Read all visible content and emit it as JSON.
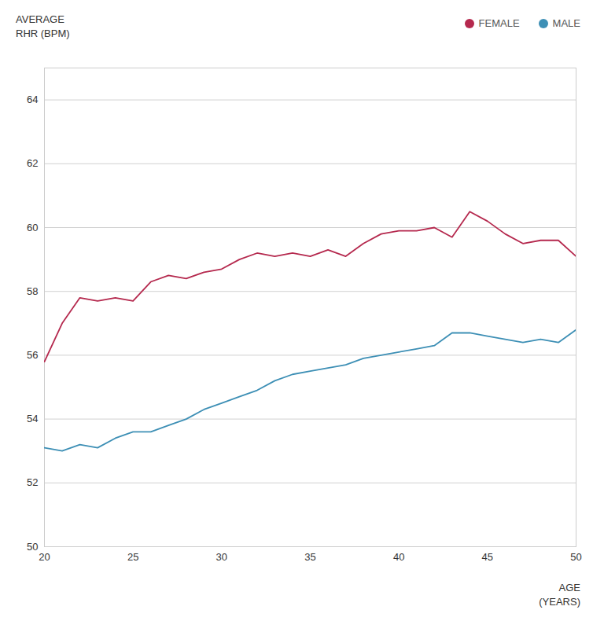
{
  "chart_data": {
    "type": "line",
    "ylabel": "AVERAGE\nRHR (BPM)",
    "xlabel": "AGE\n(YEARS)",
    "x": [
      20,
      21,
      22,
      23,
      24,
      25,
      26,
      27,
      28,
      29,
      30,
      31,
      32,
      33,
      34,
      35,
      36,
      37,
      38,
      39,
      40,
      41,
      42,
      43,
      44,
      45,
      46,
      47,
      48,
      49,
      50
    ],
    "series": [
      {
        "name": "FEMALE",
        "color": "#b5294e",
        "values": [
          55.8,
          57.0,
          57.8,
          57.7,
          57.8,
          57.7,
          58.3,
          58.5,
          58.4,
          58.6,
          58.7,
          59.0,
          59.2,
          59.1,
          59.2,
          59.1,
          59.3,
          59.1,
          59.5,
          59.8,
          59.9,
          59.9,
          60.0,
          59.7,
          60.5,
          60.2,
          59.8,
          59.5,
          59.6,
          59.6,
          59.1
        ]
      },
      {
        "name": "MALE",
        "color": "#3d8fb5",
        "values": [
          53.1,
          53.0,
          53.2,
          53.1,
          53.4,
          53.6,
          53.6,
          53.8,
          54.0,
          54.3,
          54.5,
          54.7,
          54.9,
          55.2,
          55.4,
          55.5,
          55.6,
          55.7,
          55.9,
          56.0,
          56.1,
          56.2,
          56.3,
          56.7,
          56.7,
          56.6,
          56.5,
          56.4,
          56.5,
          56.4,
          56.8
        ]
      }
    ],
    "xlim": [
      20,
      50
    ],
    "xticks": [
      20,
      25,
      30,
      35,
      40,
      45,
      50
    ],
    "ylim": [
      50,
      65
    ],
    "yticks": [
      50,
      52,
      54,
      56,
      58,
      60,
      62,
      64
    ],
    "grid": true,
    "legend": "upper right"
  }
}
